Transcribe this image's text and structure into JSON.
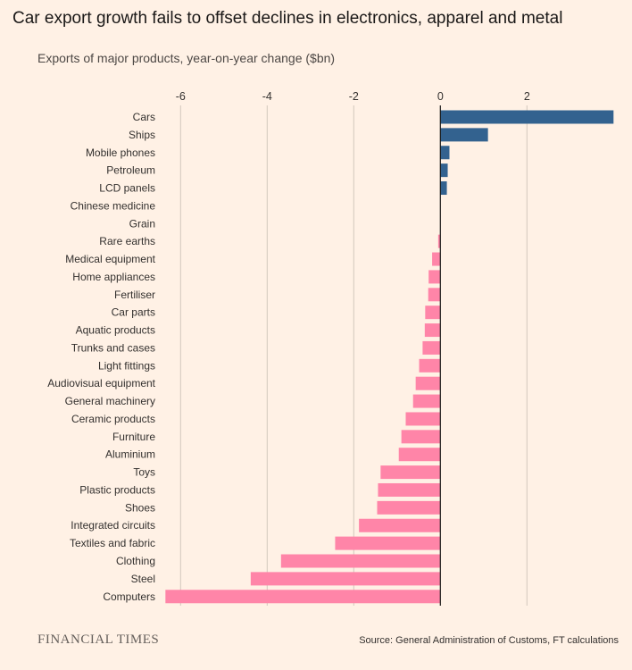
{
  "title": "Car export growth fails to offset declines in electronics, apparel and metal",
  "subtitle": "Exports of major products, year-on-year change ($bn)",
  "logo": "FINANCIAL TIMES",
  "source": "Source: General Administration of Customs, FT calculations",
  "colors": {
    "positive": "#33628f",
    "negative": "#ff85a8",
    "background": "#fff1e5",
    "grid": "#d2c8bd"
  },
  "chart_data": {
    "type": "bar",
    "orientation": "horizontal",
    "xlim": [
      -6.4,
      4.0
    ],
    "xticks": [
      -6,
      -4,
      -2,
      0,
      2
    ],
    "grid": true,
    "categories": [
      "Cars",
      "Ships",
      "Mobile phones",
      "Petroleum",
      "LCD panels",
      "Chinese medicine",
      "Grain",
      "Rare earths",
      "Medical equipment",
      "Home appliances",
      "Fertiliser",
      "Car parts",
      "Aquatic products",
      "Trunks and cases",
      "Light fittings",
      "Audiovisual equipment",
      "General machinery",
      "Ceramic products",
      "Furniture",
      "Aluminium",
      "Toys",
      "Plastic products",
      "Shoes",
      "Integrated circuits",
      "Textiles and fabric",
      "Clothing",
      "Steel",
      "Computers"
    ],
    "values": [
      4.0,
      1.1,
      0.21,
      0.17,
      0.15,
      0.0,
      0.0,
      -0.05,
      -0.19,
      -0.27,
      -0.28,
      -0.35,
      -0.36,
      -0.41,
      -0.49,
      -0.57,
      -0.63,
      -0.8,
      -0.9,
      -0.96,
      -1.38,
      -1.44,
      -1.46,
      -1.88,
      -2.43,
      -3.68,
      -4.38,
      -6.35
    ]
  }
}
